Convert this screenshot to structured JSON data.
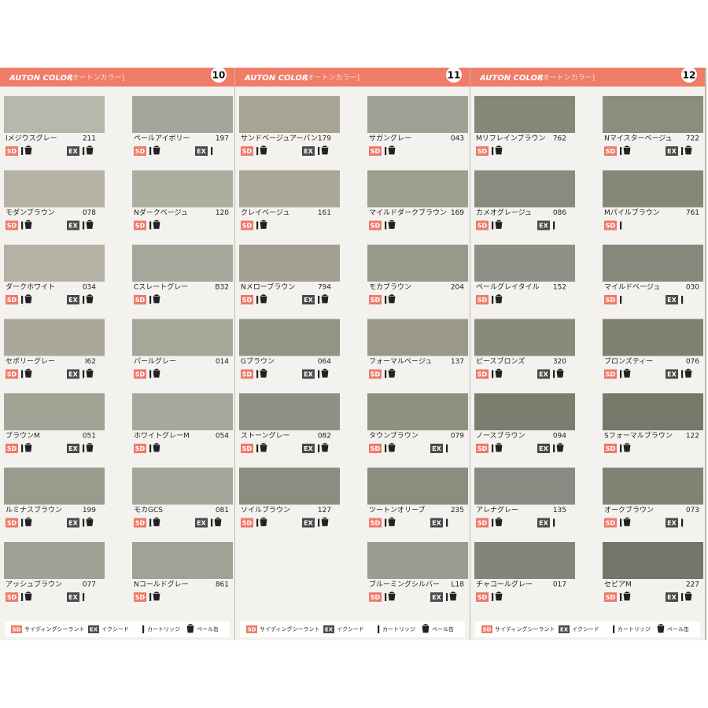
{
  "pages": [
    {
      "header": {
        "brand": "AUTON COLOR",
        "subtitle": "[オートンカラー]",
        "number": "10"
      },
      "columns": [
        [
          {
            "name": "Iメジウスグレー",
            "code": "211",
            "color": "#b8b7ac",
            "badges": [
              {
                "label": "SD",
                "pail": true
              },
              {
                "label": "EX",
                "pail": true
              }
            ]
          },
          {
            "name": "モダンブラウン",
            "code": "078",
            "color": "#b4b3a6",
            "badges": [
              {
                "label": "SD",
                "pail": true
              },
              {
                "label": "EX",
                "pail": true
              }
            ]
          },
          {
            "name": "ダークホワイト",
            "code": "034",
            "color": "#b3b2a4",
            "badges": [
              {
                "label": "SD",
                "pail": true
              },
              {
                "label": "EX",
                "pail": true
              }
            ]
          },
          {
            "name": "セボリーグレー",
            "code": "I62",
            "color": "#a9a89b",
            "badges": [
              {
                "label": "SD",
                "pail": true
              },
              {
                "label": "EX",
                "pail": true
              }
            ]
          },
          {
            "name": "ブラウンM",
            "code": "051",
            "color": "#a3a395",
            "badges": [
              {
                "label": "SD",
                "pail": true
              },
              {
                "label": "EX",
                "pail": true
              }
            ]
          },
          {
            "name": "ルミナスブラウン",
            "code": "199",
            "color": "#9a9b8c",
            "badges": [
              {
                "label": "SD",
                "pail": true
              },
              {
                "label": "EX",
                "pail": true
              }
            ]
          },
          {
            "name": "アッシュブラウン",
            "code": "077",
            "color": "#a0a094",
            "badges": [
              {
                "label": "SD",
                "pail": true
              },
              {
                "label": "EX",
                "pail": false
              }
            ]
          }
        ],
        [
          {
            "name": "ペールアイボリー",
            "code": "197",
            "color": "#a5a69b",
            "badges": [
              {
                "label": "SD",
                "pail": true
              },
              {
                "label": "EX",
                "pail": false
              }
            ]
          },
          {
            "name": "Nダークベージュ",
            "code": "120",
            "color": "#acad9f",
            "badges": [
              {
                "label": "SD",
                "pail": true
              }
            ]
          },
          {
            "name": "Cスレートグレー",
            "code": "B32",
            "color": "#a6a79a",
            "badges": [
              {
                "label": "SD",
                "pail": true
              }
            ]
          },
          {
            "name": "パールグレー",
            "code": "014",
            "color": "#a7a799",
            "badges": [
              {
                "label": "SD",
                "pail": true
              }
            ]
          },
          {
            "name": "ホワイトグレーM",
            "code": "054",
            "color": "#a7a89c",
            "badges": [
              {
                "label": "SD",
                "pail": true
              }
            ]
          },
          {
            "name": "モカGCS",
            "code": "081",
            "color": "#a5a699",
            "badges": [
              {
                "label": "SD",
                "pail": true
              },
              {
                "label": "EX",
                "pail": true
              }
            ]
          },
          {
            "name": "Nコールドグレー",
            "code": "861",
            "color": "#a1a296",
            "badges": [
              {
                "label": "SD",
                "pail": true
              }
            ]
          }
        ]
      ],
      "legend": {
        "sd_badge": "SD",
        "sd_text": "サイディングシーラント",
        "ex_badge": "EX",
        "ex_text": "イクシード",
        "cartridge": "カートリッジ",
        "pail": "ペール缶"
      }
    },
    {
      "header": {
        "brand": "AUTON COLOR",
        "subtitle": "[オートンカラー]",
        "number": "11"
      },
      "columns": [
        [
          {
            "name": "サンドベージュアーバン",
            "code": "179",
            "color": "#a7a494",
            "badges": [
              {
                "label": "SD",
                "pail": true
              },
              {
                "label": "EX",
                "pail": true
              }
            ]
          },
          {
            "name": "クレイベージュ",
            "code": "161",
            "color": "#a9a796",
            "badges": [
              {
                "label": "SD",
                "pail": true
              }
            ]
          },
          {
            "name": "Nメローブラウン",
            "code": "794",
            "color": "#a1a090",
            "badges": [
              {
                "label": "SD",
                "pail": true
              },
              {
                "label": "EX",
                "pail": true
              }
            ]
          },
          {
            "name": "Gブラウン",
            "code": "064",
            "color": "#949484",
            "badges": [
              {
                "label": "SD",
                "pail": true
              },
              {
                "label": "EX",
                "pail": true
              }
            ]
          },
          {
            "name": "ストーングレー",
            "code": "082",
            "color": "#8f9084",
            "badges": [
              {
                "label": "SD",
                "pail": true
              },
              {
                "label": "EX",
                "pail": true
              }
            ]
          },
          {
            "name": "ソイルブラウン",
            "code": "127",
            "color": "#8c8c80",
            "badges": [
              {
                "label": "SD",
                "pail": true
              },
              {
                "label": "EX",
                "pail": true
              }
            ]
          }
        ],
        [
          {
            "name": "サガングレー",
            "code": "043",
            "color": "#a0a195",
            "badges": [
              {
                "label": "SD",
                "pail": true
              }
            ]
          },
          {
            "name": "マイルドダークブラウン",
            "code": "169",
            "color": "#9e9e8e",
            "badges": [
              {
                "label": "SD",
                "pail": true
              }
            ]
          },
          {
            "name": "モカブラウン",
            "code": "204",
            "color": "#99998b",
            "badges": [
              {
                "label": "SD",
                "pail": true
              }
            ]
          },
          {
            "name": "フォーマルベージュ",
            "code": "137",
            "color": "#9a9988",
            "badges": [
              {
                "label": "SD",
                "pail": true
              }
            ]
          },
          {
            "name": "タウンブラウン",
            "code": "079",
            "color": "#909081",
            "badges": [
              {
                "label": "SD",
                "pail": true
              },
              {
                "label": "EX",
                "pail": false
              }
            ]
          },
          {
            "name": "ツートンオリーブ",
            "code": "235",
            "color": "#8b8d7e",
            "badges": [
              {
                "label": "SD",
                "pail": true
              },
              {
                "label": "EX",
                "pail": false
              }
            ]
          },
          {
            "name": "ブルーミングシルバー",
            "code": "L18",
            "color": "#9b9b8f",
            "badges": [
              {
                "label": "SD",
                "pail": true
              },
              {
                "label": "EX",
                "pail": true
              }
            ]
          }
        ]
      ],
      "legend": {
        "sd_badge": "SD",
        "sd_text": "サイディングシーラント",
        "ex_badge": "EX",
        "ex_text": "イクシード",
        "cartridge": "カートリッジ",
        "pail": "ペール缶"
      }
    },
    {
      "header": {
        "brand": "AUTON COLOR",
        "subtitle": "[オートンカラー]",
        "number": "12"
      },
      "columns": [
        [
          {
            "name": "Mリフレインブラウン",
            "code": "762",
            "color": "#878777",
            "badges": [
              {
                "label": "SD",
                "pail": true
              }
            ]
          },
          {
            "name": "カメオグレージュ",
            "code": "086",
            "color": "#8a8b7f",
            "badges": [
              {
                "label": "SD",
                "pail": true
              },
              {
                "label": "EX",
                "pail": false
              }
            ]
          },
          {
            "name": "ペールグレイタイル",
            "code": "152",
            "color": "#8e8f85",
            "badges": [
              {
                "label": "SD",
                "pail": true
              }
            ]
          },
          {
            "name": "ピースブロンズ",
            "code": "320",
            "color": "#898a7a",
            "badges": [
              {
                "label": "SD",
                "pail": true
              },
              {
                "label": "EX",
                "pail": true
              }
            ]
          },
          {
            "name": "ノースブラウン",
            "code": "094",
            "color": "#7c7d6f",
            "badges": [
              {
                "label": "SD",
                "pail": true
              },
              {
                "label": "EX",
                "pail": true
              }
            ]
          },
          {
            "name": "アレナグレー",
            "code": "135",
            "color": "#888b81",
            "badges": [
              {
                "label": "SD",
                "pail": true
              },
              {
                "label": "EX",
                "pail": false
              }
            ]
          },
          {
            "name": "チャコールグレー",
            "code": "017",
            "color": "#838579",
            "badges": [
              {
                "label": "SD",
                "pail": true
              }
            ]
          }
        ],
        [
          {
            "name": "Nマイスターベージュ",
            "code": "722",
            "color": "#8c8c7f",
            "badges": [
              {
                "label": "SD",
                "pail": true
              },
              {
                "label": "EX",
                "pail": true
              }
            ]
          },
          {
            "name": "Mパイルブラウン",
            "code": "761",
            "color": "#878779",
            "badges": [
              {
                "label": "SD",
                "pail": false
              }
            ]
          },
          {
            "name": "マイルドベージュ",
            "code": "030",
            "color": "#86887b",
            "badges": [
              {
                "label": "SD",
                "pail": false
              },
              {
                "label": "EX",
                "pail": false
              }
            ]
          },
          {
            "name": "ブロンズティー",
            "code": "076",
            "color": "#808070",
            "badges": [
              {
                "label": "SD",
                "pail": true
              },
              {
                "label": "EX",
                "pail": true
              }
            ]
          },
          {
            "name": "Sフォーマルブラウン",
            "code": "122",
            "color": "#77786a",
            "badges": [
              {
                "label": "SD",
                "pail": true
              }
            ]
          },
          {
            "name": "オークブラウン",
            "code": "073",
            "color": "#808274",
            "badges": [
              {
                "label": "SD",
                "pail": true
              },
              {
                "label": "EX",
                "pail": false
              }
            ]
          },
          {
            "name": "セピアM",
            "code": "227",
            "color": "#747469",
            "badges": [
              {
                "label": "SD",
                "pail": true
              },
              {
                "label": "EX",
                "pail": true
              }
            ]
          }
        ]
      ],
      "legend": {
        "sd_badge": "SD",
        "sd_text": "サイディングシーラント",
        "ex_badge": "EX",
        "ex_text": "イクシード",
        "cartridge": "カートリッジ",
        "pail": "ペール缶"
      }
    }
  ]
}
